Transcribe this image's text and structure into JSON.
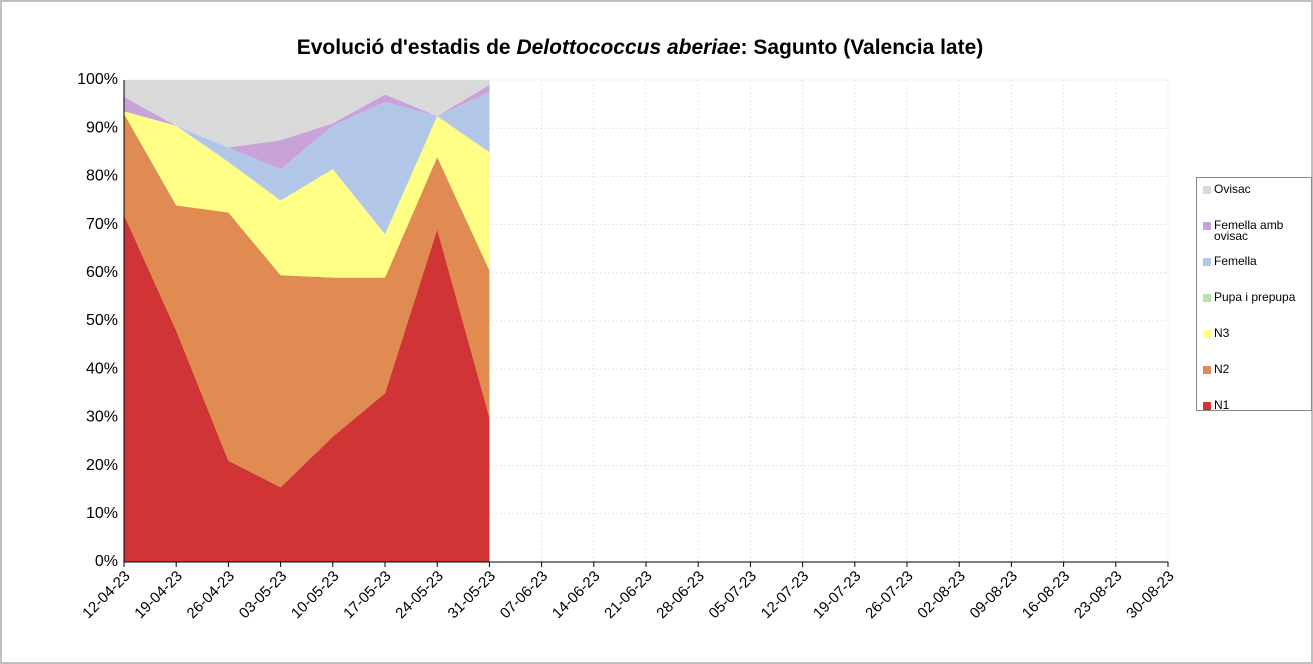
{
  "chart_data": {
    "type": "stacked_area",
    "title": [
      "Evolució d'estadis de ",
      "Delottococcus aberiae",
      ": Sagunto (Valencia late)"
    ],
    "categories": [
      "12-04-23",
      "19-04-23",
      "26-04-23",
      "03-05-23",
      "10-05-23",
      "17-05-23",
      "24-05-23",
      "31-05-23",
      "07-06-23",
      "14-06-23",
      "21-06-23",
      "28-06-23",
      "05-07-23",
      "12-07-23",
      "19-07-23",
      "26-07-23",
      "02-08-23",
      "09-08-23",
      "16-08-23",
      "23-08-23",
      "30-08-23"
    ],
    "series": [
      {
        "name": "N1",
        "color": "#d03434",
        "values": [
          72,
          48,
          21,
          15.5,
          26,
          35,
          69,
          30,
          null,
          null,
          null,
          null,
          null,
          null,
          null,
          null,
          null,
          null,
          null,
          null,
          null
        ]
      },
      {
        "name": "N2",
        "color": "#e08b52",
        "values": [
          21,
          26,
          51.5,
          44,
          33,
          24,
          15,
          30.5,
          null,
          null,
          null,
          null,
          null,
          null,
          null,
          null,
          null,
          null,
          null,
          null,
          null
        ]
      },
      {
        "name": "N3",
        "color": "#ffff85",
        "values": [
          0.5,
          16.5,
          10.5,
          15.5,
          22.5,
          9,
          8.5,
          24.5,
          null,
          null,
          null,
          null,
          null,
          null,
          null,
          null,
          null,
          null,
          null,
          null,
          null
        ]
      },
      {
        "name": "Pupa i prepupa",
        "color": "#b9e0b1",
        "values": [
          0,
          0,
          0,
          0,
          0,
          0,
          0,
          0,
          null,
          null,
          null,
          null,
          null,
          null,
          null,
          null,
          null,
          null,
          null,
          null,
          null
        ]
      },
      {
        "name": "Femella",
        "color": "#b2c6e8",
        "values": [
          0,
          0,
          3,
          6.5,
          9,
          27.5,
          0,
          12.5,
          null,
          null,
          null,
          null,
          null,
          null,
          null,
          null,
          null,
          null,
          null,
          null,
          null
        ]
      },
      {
        "name": "Femella amb ovisac",
        "color": "#c9a2d9",
        "values": [
          3,
          0,
          0,
          6,
          0.5,
          1.5,
          0,
          1.5,
          null,
          null,
          null,
          null,
          null,
          null,
          null,
          null,
          null,
          null,
          null,
          null,
          null
        ]
      },
      {
        "name": "Ovisac",
        "color": "#d9d9d9",
        "values": [
          3.5,
          9.5,
          14,
          12.5,
          9,
          3,
          7.5,
          1,
          null,
          null,
          null,
          null,
          null,
          null,
          null,
          null,
          null,
          null,
          null,
          null,
          null
        ]
      }
    ],
    "ylim": [
      0,
      100
    ],
    "yticks": [
      {
        "value": 0,
        "label": "0%"
      },
      {
        "value": 10,
        "label": "10%"
      },
      {
        "value": 20,
        "label": "20%"
      },
      {
        "value": 30,
        "label": "30%"
      },
      {
        "value": 40,
        "label": "40%"
      },
      {
        "value": 50,
        "label": "50%"
      },
      {
        "value": 60,
        "label": "60%"
      },
      {
        "value": 70,
        "label": "70%"
      },
      {
        "value": 80,
        "label": "80%"
      },
      {
        "value": 90,
        "label": "90%"
      },
      {
        "value": 100,
        "label": "100%"
      }
    ],
    "grid": true,
    "legend": "right"
  }
}
